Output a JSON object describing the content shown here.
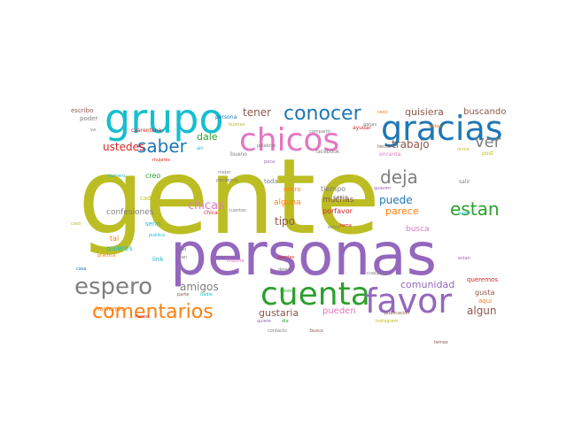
{
  "words": [
    {
      "text": "gente",
      "color": "#bcbd22"
    },
    {
      "text": "personas",
      "color": "#9467bd"
    },
    {
      "text": "grupo",
      "color": "#17becf"
    },
    {
      "text": "chicos",
      "color": "#e377c2"
    },
    {
      "text": "gracias",
      "color": "#1f77b4"
    },
    {
      "text": "cuenta",
      "color": "#2ca02c"
    },
    {
      "text": "favor",
      "color": "#9467bd"
    },
    {
      "text": "espero",
      "color": "#7f7f7f"
    },
    {
      "text": "comentarios",
      "color": "#ff7f0e"
    },
    {
      "text": "conocer",
      "color": "#1f77b4"
    },
    {
      "text": "saber",
      "color": "#1f77b4"
    },
    {
      "text": "deja",
      "color": "#7f7f7f"
    },
    {
      "text": "estan",
      "color": "#2ca02c"
    },
    {
      "text": "ver",
      "color": "#7f7f7f"
    },
    {
      "text": "ustedes",
      "color": "#d62728"
    },
    {
      "text": "tener",
      "color": "#8c564b"
    },
    {
      "text": "dale",
      "color": "#2ca02c"
    },
    {
      "text": "trabajo",
      "color": "#8c564b"
    },
    {
      "text": "quisiera",
      "color": "#8c564b"
    },
    {
      "text": "buscando",
      "color": "#8c564b"
    },
    {
      "text": "chicas",
      "color": "#e377c2"
    },
    {
      "text": "amigos",
      "color": "#7f7f7f"
    },
    {
      "text": "tipo",
      "color": "#8c564b"
    },
    {
      "text": "puede",
      "color": "#1f77b4"
    },
    {
      "text": "parece",
      "color": "#ff7f0e"
    },
    {
      "text": "comunidad",
      "color": "#9467bd"
    },
    {
      "text": "algun",
      "color": "#8c564b"
    },
    {
      "text": "gustaria",
      "color": "#8c564b"
    },
    {
      "text": "pueden",
      "color": "#e377c2"
    },
    {
      "text": "busca",
      "color": "#e377c2"
    },
    {
      "text": "confesiones",
      "color": "#7f7f7f"
    },
    {
      "text": "muchas",
      "color": "#8c564b"
    },
    {
      "text": "alguna",
      "color": "#ff7f0e"
    },
    {
      "text": "tal",
      "color": "#ff7f0e"
    },
    {
      "text": "quieres",
      "color": "#17becf"
    },
    {
      "text": "porfavor",
      "color": "#d62728"
    },
    {
      "text": "tiempo",
      "color": "#7f7f7f"
    },
    {
      "text": "gusta",
      "color": "#8c564b"
    },
    {
      "text": "queremos",
      "color": "#d62728"
    },
    {
      "text": "aqui",
      "color": "#ff7f0e"
    },
    {
      "text": "micro",
      "color": "#ff7f0e"
    },
    {
      "text": "toda",
      "color": "#7f7f7f"
    },
    {
      "text": "seria",
      "color": "#7f7f7f"
    },
    {
      "text": "creo",
      "color": "#2ca02c"
    },
    {
      "text": "cada",
      "color": "#bcbd22"
    },
    {
      "text": "serio",
      "color": "#17becf"
    },
    {
      "text": "link",
      "color": "#17becf"
    },
    {
      "text": "poder",
      "color": "#7f7f7f"
    },
    {
      "text": "escribo",
      "color": "#8c564b"
    },
    {
      "text": "cuarentena",
      "color": "#d62728"
    },
    {
      "text": "haciendo",
      "color": "#ff7f0e"
    },
    {
      "text": "persona",
      "color": "#1f77b4"
    },
    {
      "text": "bueno",
      "color": "#7f7f7f"
    },
    {
      "text": "ayudar",
      "color": "#d62728"
    },
    {
      "text": "encanta",
      "color": "#e377c2"
    },
    {
      "text": "post",
      "color": "#bcbd22"
    },
    {
      "text": "hecho",
      "color": "#8c564b"
    },
    {
      "text": "salir",
      "color": "#7f7f7f"
    },
    {
      "text": "quieren",
      "color": "#9467bd"
    },
    {
      "text": "facebook",
      "color": "#7f7f7f"
    },
    {
      "text": "mejor",
      "color": "#7f7f7f"
    },
    {
      "text": "pandemia",
      "color": "#7f7f7f"
    },
    {
      "text": "mujeres",
      "color": "#d62728"
    },
    {
      "text": "poca",
      "color": "#9467bd"
    },
    {
      "text": "chica",
      "color": "#d62728"
    },
    {
      "text": "cuantos",
      "color": "#7f7f7f"
    },
    {
      "text": "numero",
      "color": "#17becf"
    },
    {
      "text": "puedes",
      "color": "#d62728"
    },
    {
      "text": "importa",
      "color": "#e377c2"
    },
    {
      "text": "mismo",
      "color": "#2ca02c"
    },
    {
      "text": "dejen",
      "color": "#7f7f7f"
    },
    {
      "text": "contacto",
      "color": "#7f7f7f"
    },
    {
      "text": "busco",
      "color": "#8c564b"
    },
    {
      "text": "parte",
      "color": "#8c564b"
    },
    {
      "text": "nadie",
      "color": "#17becf"
    },
    {
      "text": "menos",
      "color": "#d62728"
    },
    {
      "text": "estan",
      "color": "#9467bd"
    },
    {
      "text": "tema",
      "color": "#d62728"
    },
    {
      "text": "practica",
      "color": "#ff7f0e"
    },
    {
      "text": "publica",
      "color": "#17becf"
    },
    {
      "text": "casa",
      "color": "#1f77b4"
    },
    {
      "text": "quiere",
      "color": "#9467bd"
    },
    {
      "text": "dia",
      "color": "#2ca02c"
    },
    {
      "text": "publicacion",
      "color": "#8c564b"
    },
    {
      "text": "compartir",
      "color": "#7f7f7f"
    },
    {
      "text": "cualquier",
      "color": "#7f7f7f"
    },
    {
      "text": "temas",
      "color": "#8c564b"
    },
    {
      "text": "instagram",
      "color": "#bcbd22"
    },
    {
      "text": "único",
      "color": "#bcbd22"
    },
    {
      "text": "modo",
      "color": "#17becf"
    },
    {
      "text": "buenas",
      "color": "#bcbd22"
    },
    {
      "text": "pd",
      "color": "#7f7f7f"
    },
    {
      "text": "van",
      "color": "#7f7f7f"
    },
    {
      "text": "ahi",
      "color": "#17becf"
    },
    {
      "text": "va",
      "color": "#7f7f7f"
    },
    {
      "text": "sexo",
      "color": "#ff7f0e"
    },
    {
      "text": "estoy",
      "color": "#7f7f7f"
    },
    {
      "text": "todas",
      "color": "#ff7f0e"
    },
    {
      "text": "palabras",
      "color": "#7f7f7f"
    },
    {
      "text": "ganas",
      "color": "#7f7f7f"
    },
    {
      "text": "caso",
      "color": "#bcbd22"
    }
  ]
}
